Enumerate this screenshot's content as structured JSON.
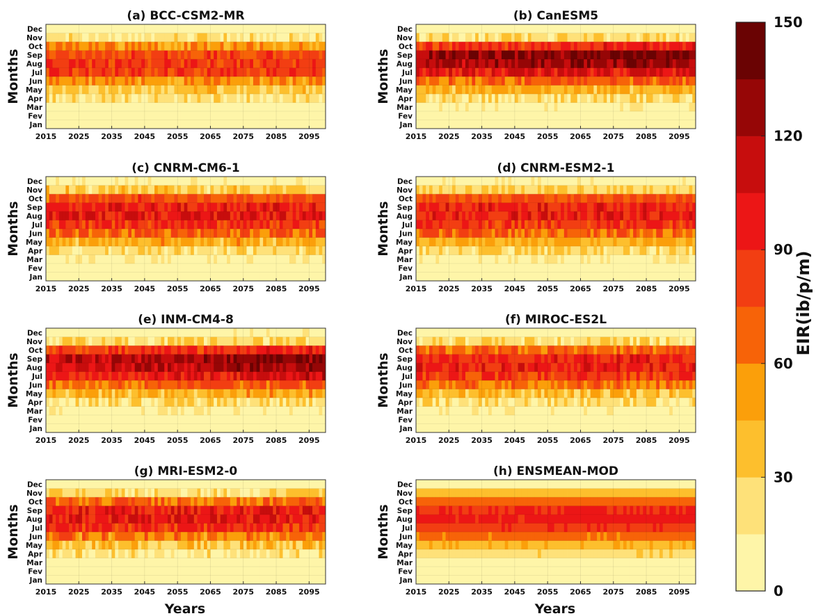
{
  "chart_data": {
    "type": "heatmap",
    "years": {
      "start": 2015,
      "end": 2100
    },
    "x_tick_labels": [
      "2015",
      "2025",
      "2035",
      "2045",
      "2055",
      "2065",
      "2075",
      "2085",
      "2095"
    ],
    "y_tick_labels": [
      "Jan",
      "Fev",
      "Mar",
      "Apr",
      "May",
      "Jun",
      "Jul",
      "Aug",
      "Sep",
      "Oct",
      "Nov",
      "Dec"
    ],
    "xlabel": "Years",
    "ylabel": "Months",
    "colorbar": {
      "label": "EIR(ib/p/m)",
      "range": [
        0,
        150
      ],
      "tick_values": [
        0,
        30,
        60,
        90,
        120,
        150
      ],
      "tick_labels": [
        "0",
        "30",
        "60",
        "90",
        "120",
        "150"
      ],
      "colors": [
        "#fef5a8",
        "#fee179",
        "#fdbf2d",
        "#fb9f0a",
        "#f76308",
        "#f23e12",
        "#ec1616",
        "#c70d0d",
        "#960606",
        "#6a0303"
      ]
    },
    "panels": [
      {
        "title": "(a) BCC-CSM2-MR",
        "monthly_mean": [
          2,
          5,
          8,
          20,
          35,
          55,
          82,
          85,
          78,
          55,
          20,
          8
        ],
        "trend": 0,
        "noise": 14
      },
      {
        "title": "(b) CanESM5",
        "monthly_mean": [
          2,
          5,
          10,
          22,
          40,
          65,
          95,
          118,
          125,
          85,
          22,
          6
        ],
        "trend": 8,
        "noise": 16
      },
      {
        "title": "(c) CNRM-CM6-1",
        "monthly_mean": [
          2,
          5,
          12,
          25,
          45,
          70,
          85,
          100,
          95,
          75,
          30,
          10
        ],
        "trend": 0,
        "noise": 16
      },
      {
        "title": "(d) CNRM-ESM2-1",
        "monthly_mean": [
          2,
          5,
          12,
          25,
          45,
          68,
          85,
          95,
          93,
          75,
          30,
          10
        ],
        "trend": 0,
        "noise": 15
      },
      {
        "title": "(e) INM-CM4-8",
        "monthly_mean": [
          2,
          4,
          10,
          22,
          40,
          62,
          90,
          105,
          110,
          80,
          25,
          8
        ],
        "trend": 14,
        "noise": 16
      },
      {
        "title": "(f) MIROC-ES2L",
        "monthly_mean": [
          2,
          4,
          10,
          22,
          38,
          62,
          85,
          95,
          92,
          70,
          25,
          8
        ],
        "trend": 0,
        "noise": 16
      },
      {
        "title": "(g) MRI-ESM2-0",
        "monthly_mean": [
          2,
          4,
          8,
          20,
          36,
          60,
          88,
          98,
          95,
          68,
          25,
          8
        ],
        "trend": 0,
        "noise": 17
      },
      {
        "title": "(h) ENSMEAN-MOD",
        "monthly_mean": [
          2,
          5,
          12,
          25,
          42,
          63,
          85,
          92,
          88,
          68,
          38,
          12
        ],
        "trend": 2,
        "noise": 5
      }
    ]
  }
}
